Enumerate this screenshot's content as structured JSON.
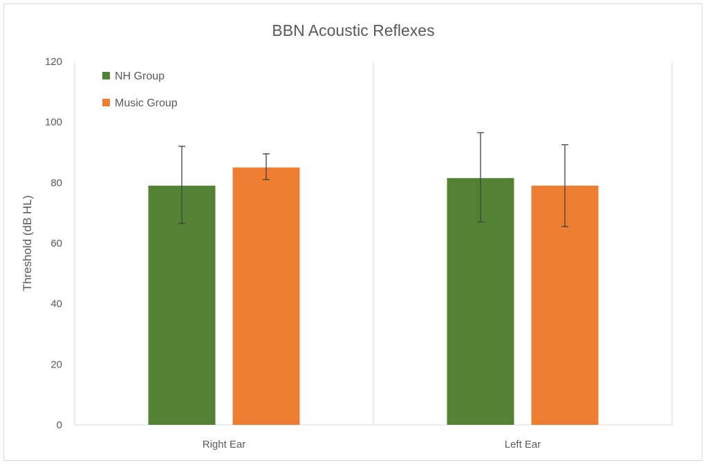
{
  "chart_data": {
    "type": "bar",
    "title": "BBN Acoustic Reflexes",
    "xlabel": "",
    "ylabel": "Threshold (dB HL)",
    "ylim": [
      0,
      120
    ],
    "yticks": [
      0,
      20,
      40,
      60,
      80,
      100,
      120
    ],
    "categories": [
      "Right Ear",
      "Left Ear"
    ],
    "grid": false,
    "legend_position": "top-left",
    "series": [
      {
        "name": "NH Group",
        "color": "#548235",
        "values": [
          79,
          81.5
        ],
        "error_low": [
          66.5,
          67
        ],
        "error_high": [
          92,
          96.5
        ]
      },
      {
        "name": "Music Group",
        "color": "#ED7D31",
        "values": [
          85,
          79
        ],
        "error_low": [
          81,
          65.5
        ],
        "error_high": [
          89.5,
          92.5
        ]
      }
    ]
  }
}
